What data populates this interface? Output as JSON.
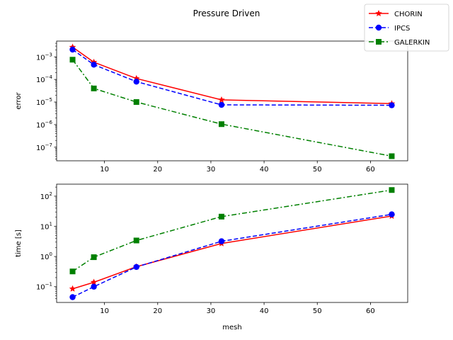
{
  "title": "Pressure Driven",
  "colors": {
    "CHORIN": "#ff0000",
    "IPCS": "#0000ff",
    "GALERKIN": "#008000"
  },
  "chart_data": [
    {
      "type": "line",
      "id": "error",
      "title": "Pressure Driven",
      "xlabel": "",
      "ylabel": "error",
      "yscale": "log",
      "xlim": [
        1,
        67
      ],
      "ylim": [
        2.5e-08,
        0.005
      ],
      "xticks": [
        10,
        20,
        30,
        40,
        50,
        60
      ],
      "yticks": [
        1e-07,
        1e-06,
        1e-05,
        0.0001,
        0.001
      ],
      "ytick_labels": [
        "10",
        "10",
        "10",
        "10",
        "10"
      ],
      "ytick_exps": [
        "−7",
        "−6",
        "−5",
        "−4",
        "−3"
      ],
      "x": [
        4,
        8,
        16,
        32,
        64
      ],
      "series": [
        {
          "name": "CHORIN",
          "marker": "star",
          "dash": "solid",
          "values": [
            0.0027,
            0.00058,
            0.00011,
            1.25e-05,
            8.5e-06
          ]
        },
        {
          "name": "IPCS",
          "marker": "circle",
          "dash": "dashed",
          "values": [
            0.0021,
            0.00045,
            8e-05,
            7.5e-06,
            7.2e-06
          ]
        },
        {
          "name": "GALERKIN",
          "marker": "square",
          "dash": "dashdot",
          "values": [
            0.00075,
            4e-05,
            1e-05,
            1.05e-06,
            4e-08
          ]
        }
      ],
      "legend": "top-right"
    },
    {
      "type": "line",
      "id": "time",
      "xlabel": "mesh",
      "ylabel": "time [s]",
      "yscale": "log",
      "xlim": [
        1,
        67
      ],
      "ylim": [
        0.03,
        250
      ],
      "xticks": [
        10,
        20,
        30,
        40,
        50,
        60
      ],
      "yticks": [
        0.1,
        1,
        10,
        100
      ],
      "ytick_labels": [
        "10",
        "10",
        "10",
        "10"
      ],
      "ytick_exps": [
        "−1",
        "0",
        "1",
        "2"
      ],
      "x": [
        4,
        8,
        16,
        32,
        64
      ],
      "series": [
        {
          "name": "CHORIN",
          "marker": "star",
          "dash": "solid",
          "values": [
            0.085,
            0.14,
            0.46,
            2.7,
            22
          ]
        },
        {
          "name": "IPCS",
          "marker": "circle",
          "dash": "dashed",
          "values": [
            0.045,
            0.1,
            0.45,
            3.2,
            25
          ]
        },
        {
          "name": "GALERKIN",
          "marker": "square",
          "dash": "dashdot",
          "values": [
            0.32,
            0.95,
            3.4,
            21,
            160
          ]
        }
      ]
    }
  ]
}
